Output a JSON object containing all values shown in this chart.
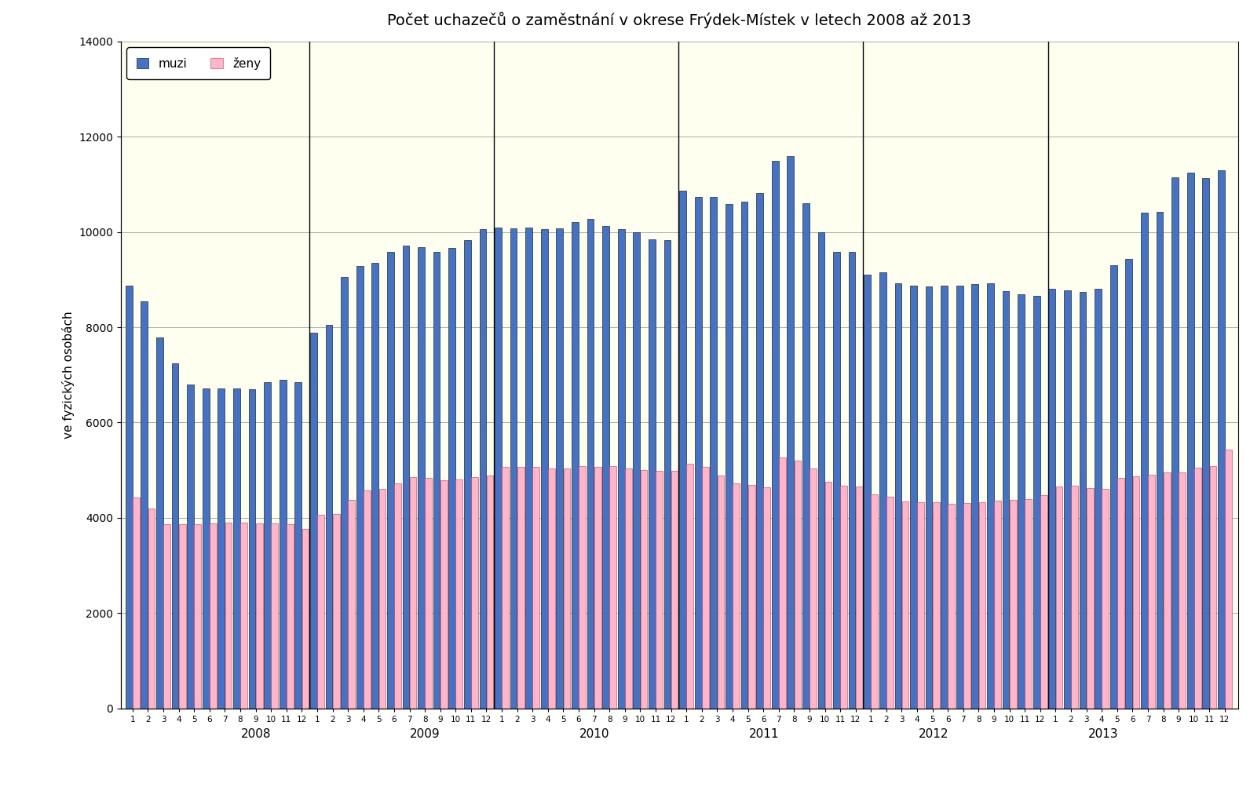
{
  "title": "Počet uchazečů o zaměstnání v okrese Frýdek-Místek v letech 2008 až 2013",
  "ylabel": "ve fyzických osobách",
  "muzi": [
    8880,
    8550,
    7780,
    7250,
    6800,
    6720,
    6710,
    6720,
    6700,
    6840,
    6900,
    6850,
    7880,
    8050,
    9050,
    9280,
    9350,
    9590,
    9710,
    9680,
    9580,
    9660,
    9830,
    10060,
    10100,
    10070,
    10090,
    10060,
    10080,
    10200,
    10280,
    10130,
    10060,
    9990,
    9850,
    9830,
    10870,
    10740,
    10730,
    10590,
    10640,
    10810,
    11500,
    11600,
    10600,
    9990,
    9580,
    9580,
    9100,
    9150,
    8920,
    8880,
    8860,
    8880,
    8870,
    8900,
    8920,
    8750,
    8700,
    8660,
    8800,
    8780,
    8740,
    8810,
    9310,
    9440,
    10400,
    10430,
    11150,
    11250,
    11130,
    11300
  ],
  "zeny": [
    4430,
    4190,
    3870,
    3870,
    3870,
    3880,
    3890,
    3900,
    3880,
    3880,
    3860,
    3760,
    4070,
    4080,
    4380,
    4570,
    4600,
    4720,
    4860,
    4830,
    4780,
    4800,
    4860,
    4890,
    5060,
    5060,
    5070,
    5040,
    5040,
    5080,
    5070,
    5080,
    5040,
    5000,
    4980,
    4980,
    5130,
    5060,
    4880,
    4730,
    4690,
    4640,
    5270,
    5200,
    5030,
    4760,
    4680,
    4650,
    4490,
    4440,
    4350,
    4320,
    4330,
    4300,
    4310,
    4330,
    4360,
    4370,
    4400,
    4470,
    4660,
    4680,
    4620,
    4610,
    4840,
    4870,
    4910,
    4950,
    4950,
    5050,
    5090,
    5430
  ],
  "bar_color_muzi": "#4472C4",
  "bar_color_zeny": "#FFB6C8",
  "bar_edge_muzi": "#000000",
  "bar_edge_zeny": "#CC3366",
  "plot_bg_color": "#FFFFF0",
  "fig_bg_color": "#FFFFFF",
  "ylim": [
    0,
    14000
  ],
  "yticks": [
    0,
    2000,
    4000,
    6000,
    8000,
    10000,
    12000,
    14000
  ],
  "year_labels": [
    "2008",
    "2009",
    "2010",
    "2011",
    "2012",
    "2013"
  ],
  "n_years": 6,
  "n_months": 12,
  "grid_color": "#AAAAAA",
  "legend_muzi": "muzi",
  "legend_zeny": "ženy",
  "title_fontsize": 14,
  "ylabel_fontsize": 11,
  "legend_fontsize": 11,
  "year_label_fontsize": 11,
  "month_label_fontsize": 7.5
}
